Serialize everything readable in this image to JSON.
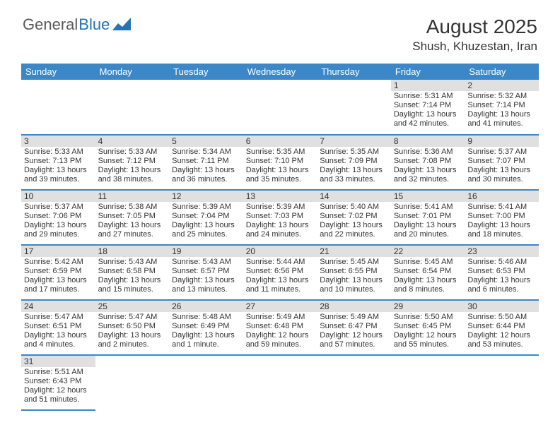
{
  "logo": {
    "part1": "General",
    "part2": "Blue"
  },
  "title": "August 2025",
  "location": "Shush, Khuzestan, Iran",
  "colors": {
    "header_bg": "#3b87c8",
    "header_text": "#ffffff",
    "daynum_bg": "#e0e0e0",
    "border": "#3b87c8",
    "text": "#333333",
    "logo_general": "#5a5a5a",
    "logo_blue": "#2572b6"
  },
  "weekdays": [
    "Sunday",
    "Monday",
    "Tuesday",
    "Wednesday",
    "Thursday",
    "Friday",
    "Saturday"
  ],
  "weeks": [
    [
      null,
      null,
      null,
      null,
      null,
      {
        "n": "1",
        "sr": "Sunrise: 5:31 AM",
        "ss": "Sunset: 7:14 PM",
        "dl": "Daylight: 13 hours and 42 minutes."
      },
      {
        "n": "2",
        "sr": "Sunrise: 5:32 AM",
        "ss": "Sunset: 7:14 PM",
        "dl": "Daylight: 13 hours and 41 minutes."
      }
    ],
    [
      {
        "n": "3",
        "sr": "Sunrise: 5:33 AM",
        "ss": "Sunset: 7:13 PM",
        "dl": "Daylight: 13 hours and 39 minutes."
      },
      {
        "n": "4",
        "sr": "Sunrise: 5:33 AM",
        "ss": "Sunset: 7:12 PM",
        "dl": "Daylight: 13 hours and 38 minutes."
      },
      {
        "n": "5",
        "sr": "Sunrise: 5:34 AM",
        "ss": "Sunset: 7:11 PM",
        "dl": "Daylight: 13 hours and 36 minutes."
      },
      {
        "n": "6",
        "sr": "Sunrise: 5:35 AM",
        "ss": "Sunset: 7:10 PM",
        "dl": "Daylight: 13 hours and 35 minutes."
      },
      {
        "n": "7",
        "sr": "Sunrise: 5:35 AM",
        "ss": "Sunset: 7:09 PM",
        "dl": "Daylight: 13 hours and 33 minutes."
      },
      {
        "n": "8",
        "sr": "Sunrise: 5:36 AM",
        "ss": "Sunset: 7:08 PM",
        "dl": "Daylight: 13 hours and 32 minutes."
      },
      {
        "n": "9",
        "sr": "Sunrise: 5:37 AM",
        "ss": "Sunset: 7:07 PM",
        "dl": "Daylight: 13 hours and 30 minutes."
      }
    ],
    [
      {
        "n": "10",
        "sr": "Sunrise: 5:37 AM",
        "ss": "Sunset: 7:06 PM",
        "dl": "Daylight: 13 hours and 29 minutes."
      },
      {
        "n": "11",
        "sr": "Sunrise: 5:38 AM",
        "ss": "Sunset: 7:05 PM",
        "dl": "Daylight: 13 hours and 27 minutes."
      },
      {
        "n": "12",
        "sr": "Sunrise: 5:39 AM",
        "ss": "Sunset: 7:04 PM",
        "dl": "Daylight: 13 hours and 25 minutes."
      },
      {
        "n": "13",
        "sr": "Sunrise: 5:39 AM",
        "ss": "Sunset: 7:03 PM",
        "dl": "Daylight: 13 hours and 24 minutes."
      },
      {
        "n": "14",
        "sr": "Sunrise: 5:40 AM",
        "ss": "Sunset: 7:02 PM",
        "dl": "Daylight: 13 hours and 22 minutes."
      },
      {
        "n": "15",
        "sr": "Sunrise: 5:41 AM",
        "ss": "Sunset: 7:01 PM",
        "dl": "Daylight: 13 hours and 20 minutes."
      },
      {
        "n": "16",
        "sr": "Sunrise: 5:41 AM",
        "ss": "Sunset: 7:00 PM",
        "dl": "Daylight: 13 hours and 18 minutes."
      }
    ],
    [
      {
        "n": "17",
        "sr": "Sunrise: 5:42 AM",
        "ss": "Sunset: 6:59 PM",
        "dl": "Daylight: 13 hours and 17 minutes."
      },
      {
        "n": "18",
        "sr": "Sunrise: 5:43 AM",
        "ss": "Sunset: 6:58 PM",
        "dl": "Daylight: 13 hours and 15 minutes."
      },
      {
        "n": "19",
        "sr": "Sunrise: 5:43 AM",
        "ss": "Sunset: 6:57 PM",
        "dl": "Daylight: 13 hours and 13 minutes."
      },
      {
        "n": "20",
        "sr": "Sunrise: 5:44 AM",
        "ss": "Sunset: 6:56 PM",
        "dl": "Daylight: 13 hours and 11 minutes."
      },
      {
        "n": "21",
        "sr": "Sunrise: 5:45 AM",
        "ss": "Sunset: 6:55 PM",
        "dl": "Daylight: 13 hours and 10 minutes."
      },
      {
        "n": "22",
        "sr": "Sunrise: 5:45 AM",
        "ss": "Sunset: 6:54 PM",
        "dl": "Daylight: 13 hours and 8 minutes."
      },
      {
        "n": "23",
        "sr": "Sunrise: 5:46 AM",
        "ss": "Sunset: 6:53 PM",
        "dl": "Daylight: 13 hours and 6 minutes."
      }
    ],
    [
      {
        "n": "24",
        "sr": "Sunrise: 5:47 AM",
        "ss": "Sunset: 6:51 PM",
        "dl": "Daylight: 13 hours and 4 minutes."
      },
      {
        "n": "25",
        "sr": "Sunrise: 5:47 AM",
        "ss": "Sunset: 6:50 PM",
        "dl": "Daylight: 13 hours and 2 minutes."
      },
      {
        "n": "26",
        "sr": "Sunrise: 5:48 AM",
        "ss": "Sunset: 6:49 PM",
        "dl": "Daylight: 13 hours and 1 minute."
      },
      {
        "n": "27",
        "sr": "Sunrise: 5:49 AM",
        "ss": "Sunset: 6:48 PM",
        "dl": "Daylight: 12 hours and 59 minutes."
      },
      {
        "n": "28",
        "sr": "Sunrise: 5:49 AM",
        "ss": "Sunset: 6:47 PM",
        "dl": "Daylight: 12 hours and 57 minutes."
      },
      {
        "n": "29",
        "sr": "Sunrise: 5:50 AM",
        "ss": "Sunset: 6:45 PM",
        "dl": "Daylight: 12 hours and 55 minutes."
      },
      {
        "n": "30",
        "sr": "Sunrise: 5:50 AM",
        "ss": "Sunset: 6:44 PM",
        "dl": "Daylight: 12 hours and 53 minutes."
      }
    ],
    [
      {
        "n": "31",
        "sr": "Sunrise: 5:51 AM",
        "ss": "Sunset: 6:43 PM",
        "dl": "Daylight: 12 hours and 51 minutes."
      },
      null,
      null,
      null,
      null,
      null,
      null
    ]
  ]
}
